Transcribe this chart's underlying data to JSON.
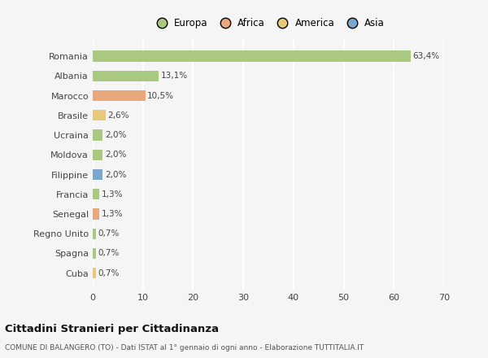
{
  "countries": [
    "Romania",
    "Albania",
    "Marocco",
    "Brasile",
    "Ucraina",
    "Moldova",
    "Filippine",
    "Francia",
    "Senegal",
    "Regno Unito",
    "Spagna",
    "Cuba"
  ],
  "values": [
    63.4,
    13.1,
    10.5,
    2.6,
    2.0,
    2.0,
    2.0,
    1.3,
    1.3,
    0.7,
    0.7,
    0.7
  ],
  "labels": [
    "63,4%",
    "13,1%",
    "10,5%",
    "2,6%",
    "2,0%",
    "2,0%",
    "2,0%",
    "1,3%",
    "1,3%",
    "0,7%",
    "0,7%",
    "0,7%"
  ],
  "colors": [
    "#a8c97f",
    "#a8c97f",
    "#e8a87c",
    "#e8c97a",
    "#a8c97f",
    "#a8c97f",
    "#7ba7cc",
    "#a8c97f",
    "#e8a87c",
    "#a8c97f",
    "#a8c97f",
    "#e8c97a"
  ],
  "legend_labels": [
    "Europa",
    "Africa",
    "America",
    "Asia"
  ],
  "legend_colors": [
    "#a8c97f",
    "#e8a87c",
    "#e8c97a",
    "#7ba7cc"
  ],
  "xlim": [
    0,
    70
  ],
  "xticks": [
    0,
    10,
    20,
    30,
    40,
    50,
    60,
    70
  ],
  "title": "Cittadini Stranieri per Cittadinanza",
  "subtitle": "COMUNE DI BALANGERO (TO) - Dati ISTAT al 1° gennaio di ogni anno - Elaborazione TUTTITALIA.IT",
  "bg_color": "#f5f5f5",
  "grid_color": "#ffffff",
  "bar_height": 0.55
}
